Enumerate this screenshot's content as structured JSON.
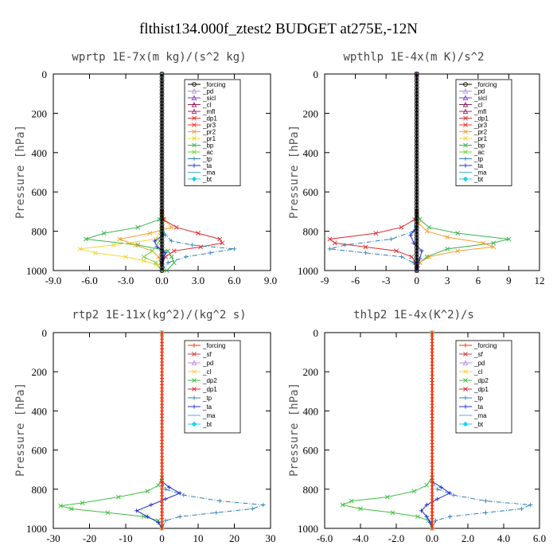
{
  "figure": {
    "title": "flthist134.000f_ztest2  BUDGET at275E,-12N"
  },
  "colors": {
    "forcing": "#000000",
    "pd": "#b58fdc",
    "sicl": "#7e3fc4",
    "cl": "#8b1a54",
    "mfl": "#a3236b",
    "dp1": "#e0292d",
    "dp2": "#3fbf3f",
    "pr3": "#e8382c",
    "pr2": "#f4a02b",
    "pr1": "#f2d43a",
    "bp": "#36b34a",
    "ac": "#72d43c",
    "tp": "#2b7fb8",
    "ta": "#1f2bd6",
    "ma": "#47b3de",
    "bt": "#19d3e6",
    "sf": "#d63c3c",
    "cl_yellow": "#f2d43a",
    "red_line": "#ff2a00"
  },
  "chart_data": [
    {
      "type": "line",
      "title": "wprtp   1E-7x(m kg)/(s^2 kg)",
      "ylabel": "Pressure [hPa]",
      "xlim": [
        -9,
        9
      ],
      "ylim": [
        1000,
        0
      ],
      "grid": false,
      "x_ticks": [
        "-9.0",
        "-6.0",
        "-3.0",
        "0.0",
        "3.0",
        "6.0",
        "9.0"
      ],
      "x_tick_values": [
        -9,
        -6,
        -3,
        0,
        3,
        6,
        9
      ],
      "y_ticks": [
        "0",
        "200",
        "400",
        "600",
        "800",
        "1000"
      ],
      "y_tick_values": [
        0,
        200,
        400,
        600,
        800,
        1000
      ],
      "legend_position": "upper-right",
      "legend": [
        "_forcing",
        "_pd",
        "_sicl",
        "_cl",
        "_mfl",
        "_dp1",
        "_pr3",
        "_pr2",
        "_pr1",
        "_bp",
        "_ac",
        "_tp",
        "_ta",
        "_ma",
        "_bt"
      ],
      "series": [
        {
          "name": "_bp",
          "color_key": "bp",
          "y": [
            0,
            700,
            740,
            780,
            810,
            840,
            870,
            900,
            930,
            960,
            1000
          ],
          "values": [
            0,
            0,
            -0.2,
            -2.0,
            -4.8,
            -6.3,
            -2.0,
            0.5,
            0.8,
            1.0,
            0.4
          ]
        },
        {
          "name": "_pr2",
          "color_key": "pr2",
          "y": [
            0,
            700,
            740,
            780,
            810,
            840,
            870,
            900,
            930,
            960,
            1000
          ],
          "values": [
            0,
            0,
            0.2,
            0.8,
            -1.0,
            -3.5,
            -2.2,
            -0.8,
            -0.3,
            -0.1,
            0
          ]
        },
        {
          "name": "_pr1",
          "color_key": "pr1",
          "y": [
            0,
            700,
            780,
            840,
            870,
            890,
            910,
            930,
            950,
            970,
            1000
          ],
          "values": [
            0,
            0,
            0,
            -0.5,
            -4.0,
            -6.8,
            -5.5,
            -3.0,
            -1.5,
            -0.5,
            0
          ]
        },
        {
          "name": "_dp1",
          "color_key": "dp1",
          "y": [
            0,
            700,
            740,
            780,
            810,
            840,
            860,
            880,
            900,
            930,
            960,
            1000
          ],
          "values": [
            0,
            0,
            0.1,
            1.2,
            3.0,
            4.8,
            5.0,
            3.2,
            1.0,
            0.3,
            0,
            0
          ]
        },
        {
          "name": "_tp",
          "color_key": "tp",
          "y": [
            0,
            700,
            780,
            820,
            850,
            870,
            890,
            910,
            930,
            960,
            1000
          ],
          "values": [
            0,
            0,
            0,
            0.3,
            0.8,
            2.5,
            6.0,
            4.0,
            2.0,
            0.5,
            0
          ]
        },
        {
          "name": "_ta",
          "color_key": "ta",
          "y": [
            0,
            780,
            820,
            850,
            880,
            910,
            940,
            1000
          ],
          "values": [
            0,
            0,
            0.1,
            -0.6,
            -0.4,
            0.3,
            0.1,
            0
          ]
        },
        {
          "name": "_ac",
          "color_key": "ac",
          "y": [
            0,
            800,
            850,
            900,
            930,
            960,
            1000
          ],
          "values": [
            0,
            0,
            -0.2,
            -0.8,
            -1.5,
            -0.5,
            0
          ]
        },
        {
          "name": "_forcing",
          "color_key": "forcing",
          "y": [
            0,
            1000
          ],
          "values": [
            0,
            0
          ]
        }
      ]
    },
    {
      "type": "line",
      "title": "wpthlp   1E-4x(m K)/s^2",
      "ylabel": "Pressure [hPa]",
      "xlim": [
        -9,
        12
      ],
      "ylim": [
        1000,
        0
      ],
      "grid": false,
      "x_ticks": [
        "-9",
        "-6",
        "-3",
        "0",
        "3",
        "6",
        "9",
        "12"
      ],
      "x_tick_values": [
        -9,
        -6,
        -3,
        0,
        3,
        6,
        9,
        12
      ],
      "y_ticks": [
        "0",
        "200",
        "400",
        "600",
        "800",
        "1000"
      ],
      "y_tick_values": [
        0,
        200,
        400,
        600,
        800,
        1000
      ],
      "legend_position": "upper-right",
      "legend": [
        "_forcing",
        "_pd",
        "_sicl",
        "_cl",
        "_mfl",
        "_dp1",
        "_pr3",
        "_pr2",
        "_pr1",
        "_bp",
        "_ac",
        "_tp",
        "_ta",
        "_ma",
        "_bt"
      ],
      "series": [
        {
          "name": "_bp",
          "color_key": "bp",
          "y": [
            0,
            700,
            740,
            780,
            810,
            840,
            860,
            890,
            930,
            960,
            1000
          ],
          "values": [
            0,
            0,
            0.3,
            1.2,
            4.0,
            9.0,
            7.5,
            3.0,
            1.0,
            0.3,
            0
          ]
        },
        {
          "name": "_pr2",
          "color_key": "pr2",
          "y": [
            0,
            700,
            760,
            800,
            830,
            860,
            880,
            900,
            930,
            960,
            1000
          ],
          "values": [
            0,
            0,
            0.2,
            1.0,
            3.0,
            6.5,
            7.5,
            4.0,
            1.2,
            0.3,
            0
          ]
        },
        {
          "name": "_dp1",
          "color_key": "dp1",
          "y": [
            0,
            700,
            740,
            780,
            810,
            840,
            860,
            880,
            900,
            930,
            960,
            1000
          ],
          "values": [
            0,
            0,
            -0.2,
            -1.5,
            -4.0,
            -8.5,
            -8.0,
            -5.0,
            -2.0,
            -0.5,
            -0.1,
            0
          ]
        },
        {
          "name": "_tp",
          "color_key": "tp",
          "y": [
            0,
            700,
            800,
            840,
            870,
            890,
            910,
            930,
            960,
            1000
          ],
          "values": [
            0,
            0,
            -0.3,
            -2.5,
            -7.0,
            -8.5,
            -5.0,
            -1.5,
            -0.3,
            0
          ]
        },
        {
          "name": "_ta",
          "color_key": "ta",
          "y": [
            0,
            780,
            820,
            860,
            900,
            940,
            980,
            1000
          ],
          "values": [
            0,
            0,
            -0.6,
            -0.3,
            0.5,
            0.3,
            0.1,
            0
          ]
        },
        {
          "name": "_forcing",
          "color_key": "forcing",
          "y": [
            0,
            1000
          ],
          "values": [
            0,
            0
          ]
        }
      ]
    },
    {
      "type": "line",
      "title": "rtp2   1E-11x(kg^2)/(kg^2 s)",
      "ylabel": "Pressure [hPa]",
      "xlim": [
        -30,
        30
      ],
      "ylim": [
        1000,
        0
      ],
      "grid": false,
      "x_ticks": [
        "-30",
        "-20",
        "-10",
        "0",
        "10",
        "20",
        "30"
      ],
      "x_tick_values": [
        -30,
        -20,
        -10,
        0,
        10,
        20,
        30
      ],
      "y_ticks": [
        "0",
        "200",
        "400",
        "600",
        "800",
        "1000"
      ],
      "y_tick_values": [
        0,
        200,
        400,
        600,
        800,
        1000
      ],
      "legend_position": "upper-right",
      "legend": [
        "_forcing",
        "_sf",
        "_pd",
        "_cl",
        "_dp2",
        "_dp1",
        "_tp",
        "_ta",
        "_ma",
        "_bt"
      ],
      "series": [
        {
          "name": "_dp2",
          "color_key": "dp2",
          "y": [
            0,
            740,
            780,
            810,
            840,
            870,
            885,
            900,
            920,
            940,
            960,
            1000
          ],
          "values": [
            0,
            0,
            -1.0,
            -4.0,
            -12.0,
            -22.0,
            -28.0,
            -25.0,
            -15.0,
            -5.0,
            -1.0,
            0
          ]
        },
        {
          "name": "_tp",
          "color_key": "tp",
          "y": [
            0,
            760,
            800,
            830,
            860,
            880,
            900,
            920,
            940,
            960,
            1000
          ],
          "values": [
            0,
            0,
            1.0,
            6.0,
            16.0,
            28.0,
            25.0,
            15.0,
            5.0,
            1.0,
            0
          ]
        },
        {
          "name": "_ta",
          "color_key": "ta",
          "y": [
            0,
            760,
            790,
            820,
            850,
            880,
            910,
            940,
            970,
            1000
          ],
          "values": [
            0,
            0,
            2.0,
            5.0,
            1.0,
            -3.0,
            -7.0,
            -4.0,
            -1.0,
            0
          ]
        },
        {
          "name": "_forcing",
          "color_key": "red_line",
          "y": [
            0,
            1000
          ],
          "values": [
            0,
            0
          ]
        }
      ]
    },
    {
      "type": "line",
      "title": "thlp2   1E-4x(K^2)/s",
      "ylabel": "Pressure [hPa]",
      "xlim": [
        -6,
        6
      ],
      "ylim": [
        1000,
        0
      ],
      "grid": false,
      "x_ticks": [
        "-6.0",
        "-4.0",
        "-2.0",
        "0.0",
        "2.0",
        "4.0",
        "6.0"
      ],
      "x_tick_values": [
        -6,
        -4,
        -2,
        0,
        2,
        4,
        6
      ],
      "y_ticks": [
        "0",
        "200",
        "400",
        "600",
        "800",
        "1000"
      ],
      "y_tick_values": [
        0,
        200,
        400,
        600,
        800,
        1000
      ],
      "legend_position": "upper-right",
      "legend": [
        "_forcing",
        "_sf",
        "_pd",
        "_cl",
        "_dp2",
        "_dp1",
        "_tp",
        "_ta",
        "_ma",
        "_bt"
      ],
      "series": [
        {
          "name": "_dp2",
          "color_key": "dp2",
          "y": [
            0,
            740,
            780,
            810,
            840,
            860,
            880,
            900,
            920,
            940,
            960,
            1000
          ],
          "values": [
            0,
            0,
            -0.3,
            -1.0,
            -2.5,
            -4.5,
            -5.0,
            -4.0,
            -2.2,
            -0.8,
            -0.2,
            0
          ]
        },
        {
          "name": "_tp",
          "color_key": "tp",
          "y": [
            0,
            760,
            800,
            830,
            860,
            880,
            900,
            920,
            940,
            960,
            1000
          ],
          "values": [
            0,
            0,
            0.3,
            1.2,
            3.0,
            5.5,
            5.0,
            3.0,
            1.0,
            0.2,
            0
          ]
        },
        {
          "name": "_ta",
          "color_key": "ta",
          "y": [
            0,
            760,
            790,
            820,
            850,
            880,
            910,
            940,
            970,
            1000
          ],
          "values": [
            0,
            0,
            0.5,
            1.0,
            0.3,
            -0.3,
            -0.6,
            -0.3,
            -0.1,
            0
          ]
        },
        {
          "name": "_forcing",
          "color_key": "red_line",
          "y": [
            0,
            1000
          ],
          "values": [
            0,
            0
          ]
        }
      ]
    }
  ]
}
